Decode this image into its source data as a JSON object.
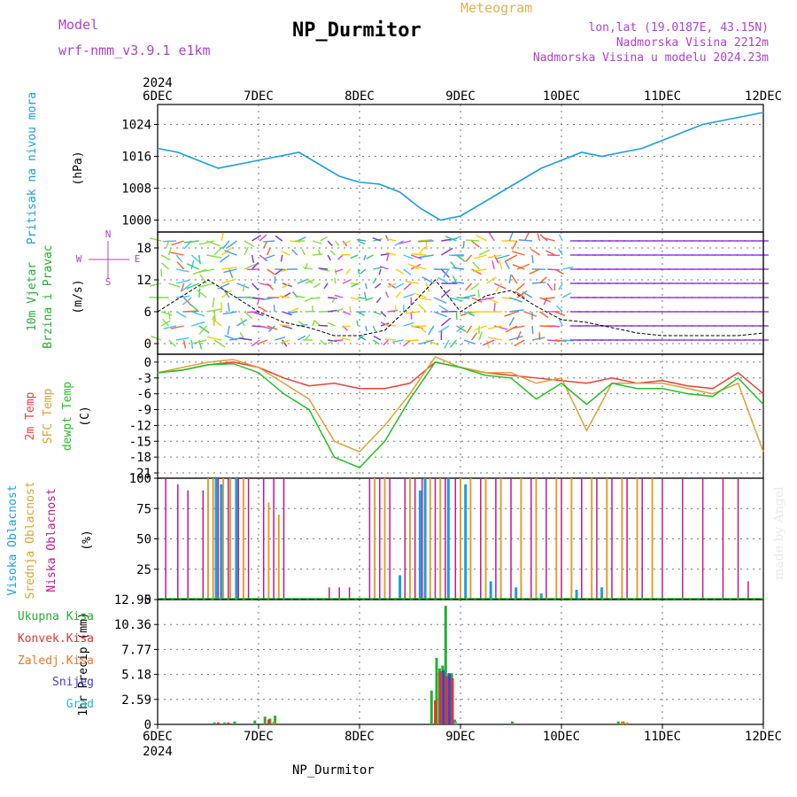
{
  "header": {
    "model_label": "Model",
    "model_name": "wrf-nmm_v3.9.1  e1km",
    "chart_kind": "Meteogram",
    "station": "NP_Durmitor",
    "lonlat": "lon,lat (19.0187E, 43.15N)",
    "elevation": "Nadmorska Visina 2212m",
    "model_elevation": "Nadmorska Visina u modelu 2024.23m",
    "credit": "made by Angel",
    "footer_station": "NP_Durmitor"
  },
  "colors": {
    "pressure": "#1a9ee0",
    "temp2m": "#e8403a",
    "sfc_temp": "#e0a030",
    "dewpt": "#22c022",
    "cloud_high": "#1a9ee0",
    "cloud_mid": "#e0a030",
    "cloud_low": "#c01890",
    "precip_total": "#22b030",
    "precip_conv": "#e83030",
    "precip_freezing": "#f07820",
    "precip_snow": "#4040e0",
    "precip_grad": "#20c0c0",
    "purple_text": "#b040d0",
    "gold_text": "#e0b050"
  },
  "chart_data": [
    {
      "type": "line",
      "panel": "pressure",
      "ylabel": [
        "Pritisak na nivou mora",
        "(hPa)"
      ],
      "x_ticks": [
        "6DEC",
        "7DEC",
        "8DEC",
        "9DEC",
        "10DEC",
        "11DEC",
        "12DEC"
      ],
      "x_year": "2024",
      "yticks": [
        "1000",
        "1008",
        "1016",
        "1024"
      ],
      "ylim": [
        997,
        1029
      ],
      "grid": true,
      "series": [
        {
          "x": [
            0,
            0.2,
            0.4,
            0.6,
            0.8,
            1.0,
            1.2,
            1.4,
            1.6,
            1.8,
            2.0,
            2.2,
            2.4,
            2.6,
            2.8,
            3.0,
            3.2,
            3.4,
            3.6,
            3.8,
            4.0,
            4.2,
            4.4,
            4.6,
            4.8,
            5.0,
            5.2,
            5.4,
            5.6,
            5.8,
            6.0
          ],
          "values": [
            1018,
            1017,
            1015,
            1013,
            1014,
            1015,
            1016,
            1017,
            1014,
            1011,
            1009.5,
            1009,
            1007,
            1003,
            1000,
            1001,
            1004,
            1007,
            1010,
            1013,
            1015,
            1017,
            1016,
            1017,
            1018,
            1020,
            1022,
            1024,
            1025,
            1026,
            1027
          ]
        }
      ]
    },
    {
      "type": "line",
      "panel": "wind",
      "ylabel": [
        "10m Vjetar",
        "Brzina i Pravac",
        "(m/s)"
      ],
      "yticks": [
        "0",
        "6",
        "12",
        "18"
      ],
      "ylim": [
        -2,
        21
      ],
      "compass": [
        "N",
        "W",
        "E",
        "S"
      ],
      "grid": true,
      "series": [
        {
          "name": "speed",
          "x": [
            0,
            0.25,
            0.5,
            0.75,
            1.0,
            1.25,
            1.5,
            1.75,
            2.0,
            2.25,
            2.5,
            2.75,
            3.0,
            3.25,
            3.5,
            3.75,
            4.0,
            4.25,
            4.5,
            4.75,
            5.0,
            5.25,
            5.5,
            5.75,
            6.0
          ],
          "values": [
            6,
            9,
            12,
            9,
            6,
            4,
            3,
            1.5,
            1.5,
            2.5,
            7,
            12,
            6,
            9,
            10,
            7,
            4.5,
            4,
            3,
            2,
            1.5,
            1.5,
            1.5,
            1.5,
            2
          ]
        }
      ]
    },
    {
      "type": "line",
      "panel": "temperature",
      "ylabel": [
        "2m Temp",
        "SFC Temp",
        "dewpt Temp",
        "(C)"
      ],
      "yticks": [
        "0",
        "-3",
        "-6",
        "-9",
        "-12",
        "-15",
        "-18",
        "-21"
      ],
      "ylim": [
        -22,
        1.5
      ],
      "grid": true,
      "series": [
        {
          "name": "2m Temp",
          "x": [
            0,
            0.25,
            0.5,
            0.75,
            1.0,
            1.25,
            1.5,
            1.75,
            2.0,
            2.25,
            2.5,
            2.75,
            3.0,
            3.25,
            3.5,
            3.75,
            4.0,
            4.25,
            4.5,
            4.75,
            5.0,
            5.25,
            5.5,
            5.75,
            6.0
          ],
          "values": [
            -2,
            -1.5,
            -0.5,
            0,
            -1,
            -3,
            -4.5,
            -4,
            -5,
            -5,
            -4,
            0,
            -1,
            -2,
            -2.5,
            -3,
            -3.5,
            -4,
            -3,
            -4,
            -3.5,
            -4.5,
            -5,
            -2,
            -6
          ]
        },
        {
          "name": "SFC Temp",
          "x": [
            0,
            0.25,
            0.5,
            0.75,
            1.0,
            1.25,
            1.5,
            1.75,
            2.0,
            2.25,
            2.5,
            2.75,
            3.0,
            3.25,
            3.5,
            3.75,
            4.0,
            4.25,
            4.5,
            4.75,
            5.0,
            5.25,
            5.5,
            5.75,
            6.0
          ],
          "values": [
            -2,
            -1,
            0,
            0.5,
            -1,
            -4,
            -7,
            -15,
            -17,
            -12,
            -6,
            1,
            -1,
            -2,
            -2,
            -4,
            -3,
            -13,
            -4,
            -4,
            -4,
            -5,
            -6,
            -4,
            -17
          ]
        },
        {
          "name": "dewpt Temp",
          "x": [
            0,
            0.25,
            0.5,
            0.75,
            1.0,
            1.25,
            1.5,
            1.75,
            2.0,
            2.25,
            2.5,
            2.75,
            3.0,
            3.25,
            3.5,
            3.75,
            4.0,
            4.25,
            4.5,
            4.75,
            5.0,
            5.25,
            5.5,
            5.75,
            6.0
          ],
          "values": [
            -2,
            -1.5,
            -0.5,
            -0.3,
            -2,
            -6,
            -9,
            -18,
            -20,
            -15,
            -7,
            0,
            -1,
            -2.5,
            -3,
            -7,
            -4,
            -8,
            -4,
            -5,
            -5,
            -6,
            -6.5,
            -3,
            -8
          ]
        }
      ]
    },
    {
      "type": "bar",
      "panel": "clouds",
      "ylabel": [
        "Visoka Oblacnost",
        "Srednja Oblacnost",
        "Niska Oblacnost",
        "(%)"
      ],
      "yticks": [
        "0",
        "25",
        "50",
        "75",
        "100"
      ],
      "ylim": [
        0,
        100
      ],
      "grid": true,
      "series": [
        {
          "name": "Niska Oblacnost",
          "x": [
            0.08,
            0.2,
            0.3,
            0.45,
            0.5,
            0.6,
            0.7,
            0.8,
            0.9,
            1.05,
            1.15,
            1.25,
            1.7,
            1.8,
            1.9,
            2.1,
            2.2,
            2.3,
            2.45,
            2.55,
            2.62,
            2.75,
            2.85,
            2.95,
            3.2,
            3.35,
            3.5,
            3.7,
            3.85,
            4.0,
            4.2,
            4.35,
            4.5,
            4.65,
            4.8,
            5.0,
            5.2,
            5.4,
            5.6,
            5.75,
            5.85
          ],
          "values": [
            100,
            95,
            90,
            90,
            100,
            100,
            100,
            100,
            100,
            100,
            100,
            100,
            10,
            10,
            10,
            100,
            100,
            100,
            100,
            100,
            100,
            100,
            100,
            100,
            100,
            100,
            100,
            100,
            100,
            100,
            100,
            100,
            100,
            100,
            100,
            100,
            100,
            100,
            100,
            100,
            15
          ]
        },
        {
          "name": "Srednja Oblacnost",
          "x": [
            0.5,
            0.55,
            0.65,
            0.72,
            0.85,
            1.1,
            1.2,
            2.15,
            2.25,
            2.5,
            2.7,
            2.8,
            3.0,
            3.1,
            3.25,
            3.4,
            3.6,
            3.75,
            3.95,
            4.1,
            4.3,
            4.45,
            4.6,
            4.75,
            4.9
          ],
          "values": [
            100,
            100,
            100,
            100,
            100,
            80,
            70,
            100,
            100,
            100,
            100,
            100,
            100,
            100,
            100,
            100,
            100,
            100,
            100,
            100,
            100,
            100,
            100,
            100,
            100
          ]
        },
        {
          "name": "Visoka Oblacnost",
          "x": [
            0.58,
            0.63,
            0.78,
            2.4,
            2.6,
            2.65,
            2.88,
            3.05,
            3.3,
            3.55,
            3.8,
            4.15,
            4.4
          ],
          "values": [
            100,
            95,
            100,
            20,
            90,
            100,
            100,
            95,
            15,
            10,
            5,
            8,
            10
          ]
        }
      ]
    },
    {
      "type": "bar",
      "panel": "precip",
      "ylabel": [
        "1hr Precip (mm)"
      ],
      "legend": [
        "Ukupna Kisa",
        "Konvek.Kisa",
        "Zaledj.Kisa",
        "Snijeg",
        "Grad"
      ],
      "yticks": [
        "0",
        "2.59",
        "5.18",
        "7.77",
        "10.36",
        "12.95"
      ],
      "ylim": [
        0,
        12.95
      ],
      "grid": true,
      "series": [
        {
          "name": "Ukupna Kisa",
          "x": [
            0.55,
            0.65,
            0.75,
            0.95,
            1.05,
            1.1,
            1.15,
            2.7,
            2.75,
            2.78,
            2.81,
            2.84,
            2.87,
            2.9,
            2.93,
            3.5,
            4.55,
            4.6
          ],
          "values": [
            0.2,
            0.2,
            0.3,
            0.4,
            0.8,
            0.6,
            0.9,
            3.5,
            6.9,
            5.8,
            6.1,
            12.3,
            5.3,
            5.3,
            0.5,
            0.3,
            0.3,
            0.3
          ]
        },
        {
          "name": "Konvek.Kisa",
          "x": [
            0.57,
            0.67,
            1.07,
            2.72,
            2.77,
            2.83,
            2.89
          ],
          "values": [
            0.2,
            0.2,
            0.5,
            2.5,
            5.5,
            5.0,
            4.8
          ]
        },
        {
          "name": "Zaledj.Kisa",
          "x": [
            1.12,
            4.57,
            4.62
          ],
          "values": [
            0.3,
            0.3,
            0.2
          ]
        },
        {
          "name": "Snijeg",
          "x": [
            2.8,
            2.86
          ],
          "values": [
            5.6,
            5.3
          ]
        },
        {
          "name": "Grad",
          "x": [
            2.92
          ],
          "values": [
            0.3
          ]
        }
      ]
    }
  ]
}
